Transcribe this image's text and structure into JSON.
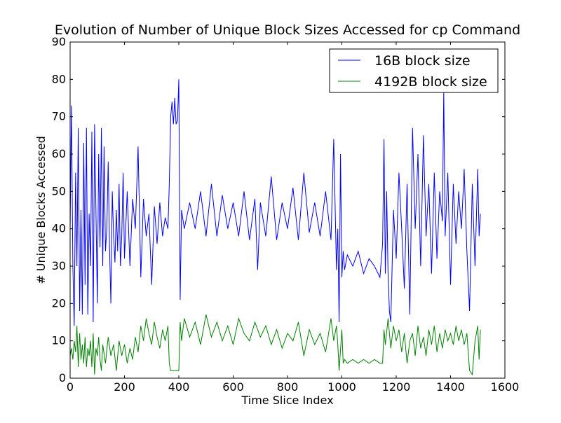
{
  "chart_data": {
    "type": "line",
    "title": "Evolution of Number of Unique Block Sizes Accessed for cp Command",
    "xlabel": "Time Slice Index",
    "ylabel": "# Unique Blocks Accessed",
    "xlim": [
      0,
      1600
    ],
    "ylim": [
      0,
      90
    ],
    "xticks": [
      0,
      200,
      400,
      600,
      800,
      1000,
      1200,
      1400,
      1600
    ],
    "yticks": [
      0,
      10,
      20,
      30,
      40,
      50,
      60,
      70,
      80,
      90
    ],
    "xtick_labels": [
      "0",
      "200",
      "400",
      "600",
      "800",
      "1000",
      "1200",
      "1400",
      "1600"
    ],
    "ytick_labels": [
      "0",
      "10",
      "20",
      "30",
      "40",
      "50",
      "60",
      "70",
      "80",
      "90"
    ],
    "grid": false,
    "legend_position": "top-right",
    "series": [
      {
        "name": "16B block size",
        "color": "#0000ff",
        "x": [
          0,
          5,
          10,
          15,
          20,
          25,
          30,
          35,
          40,
          45,
          50,
          55,
          60,
          65,
          70,
          75,
          80,
          85,
          90,
          95,
          100,
          105,
          110,
          115,
          120,
          125,
          130,
          135,
          140,
          145,
          150,
          155,
          160,
          165,
          170,
          175,
          180,
          185,
          190,
          195,
          200,
          210,
          220,
          230,
          240,
          250,
          260,
          270,
          280,
          290,
          300,
          310,
          320,
          330,
          340,
          350,
          360,
          365,
          370,
          375,
          380,
          385,
          390,
          395,
          400,
          405,
          410,
          420,
          440,
          460,
          480,
          500,
          520,
          540,
          560,
          580,
          600,
          620,
          640,
          660,
          680,
          690,
          700,
          720,
          740,
          760,
          780,
          800,
          820,
          840,
          860,
          880,
          900,
          920,
          940,
          960,
          970,
          980,
          985,
          990,
          995,
          1000,
          1005,
          1010,
          1020,
          1040,
          1060,
          1080,
          1100,
          1120,
          1140,
          1150,
          1155,
          1160,
          1165,
          1170,
          1175,
          1180,
          1190,
          1200,
          1210,
          1220,
          1230,
          1240,
          1250,
          1260,
          1270,
          1280,
          1290,
          1300,
          1310,
          1320,
          1330,
          1340,
          1350,
          1360,
          1370,
          1375,
          1380,
          1390,
          1400,
          1410,
          1420,
          1430,
          1440,
          1450,
          1460,
          1470,
          1480,
          1490,
          1500,
          1505,
          1510
        ],
        "values": [
          40,
          73,
          30,
          14,
          55,
          30,
          67,
          18,
          45,
          17,
          63,
          25,
          67,
          17,
          44,
          30,
          66,
          15,
          68,
          45,
          20,
          60,
          35,
          67,
          30,
          62,
          34,
          40,
          58,
          35,
          20,
          50,
          38,
          31,
          45,
          34,
          52,
          30,
          38,
          55,
          32,
          50,
          30,
          48,
          40,
          62,
          27,
          48,
          38,
          44,
          25,
          46,
          36,
          47,
          38,
          43,
          40,
          52,
          70,
          74,
          68,
          75,
          68,
          69,
          80,
          21,
          45,
          40,
          47,
          40,
          50,
          38,
          52,
          38,
          49,
          40,
          47,
          38,
          50,
          37,
          48,
          29,
          47,
          38,
          54,
          37,
          47,
          40,
          51,
          37,
          55,
          39,
          47,
          38,
          50,
          37,
          64,
          29,
          40,
          15,
          60,
          27,
          34,
          29,
          33,
          30,
          34,
          28,
          32,
          30,
          27,
          36,
          64,
          28,
          50,
          28,
          18,
          15,
          45,
          32,
          55,
          40,
          24,
          52,
          17,
          67,
          40,
          60,
          30,
          65,
          38,
          52,
          28,
          55,
          32,
          50,
          42,
          77,
          38,
          55,
          25,
          52,
          36,
          50,
          40,
          56,
          34,
          18,
          52,
          30,
          56,
          38,
          44
        ]
      },
      {
        "name": "4192B block size",
        "color": "#008000",
        "x": [
          0,
          5,
          10,
          15,
          20,
          25,
          30,
          35,
          40,
          45,
          50,
          55,
          60,
          65,
          70,
          75,
          80,
          85,
          90,
          95,
          100,
          105,
          110,
          115,
          120,
          130,
          140,
          150,
          160,
          170,
          180,
          190,
          200,
          210,
          220,
          230,
          240,
          250,
          260,
          270,
          280,
          290,
          300,
          310,
          320,
          330,
          340,
          350,
          360,
          365,
          370,
          380,
          390,
          400,
          405,
          410,
          420,
          440,
          460,
          480,
          500,
          520,
          540,
          560,
          580,
          600,
          620,
          640,
          660,
          680,
          700,
          720,
          740,
          760,
          780,
          800,
          820,
          840,
          860,
          880,
          900,
          920,
          940,
          960,
          970,
          980,
          985,
          990,
          1000,
          1005,
          1010,
          1020,
          1040,
          1060,
          1080,
          1100,
          1120,
          1140,
          1150,
          1155,
          1160,
          1170,
          1180,
          1190,
          1200,
          1210,
          1220,
          1230,
          1240,
          1250,
          1260,
          1270,
          1280,
          1290,
          1300,
          1310,
          1320,
          1330,
          1340,
          1350,
          1360,
          1370,
          1380,
          1390,
          1400,
          1410,
          1420,
          1430,
          1440,
          1450,
          1460,
          1470,
          1480,
          1490,
          1500,
          1505,
          1510
        ],
        "values": [
          6,
          8,
          5,
          10,
          7,
          14,
          3,
          12,
          5,
          9,
          4,
          11,
          3,
          8,
          6,
          10,
          3,
          12,
          1,
          8,
          6,
          11,
          5,
          2,
          9,
          4,
          11,
          6,
          9,
          2,
          10,
          6,
          9,
          4,
          8,
          5,
          11,
          7,
          14,
          10,
          16,
          12,
          9,
          15,
          11,
          8,
          13,
          10,
          14,
          4,
          2,
          2,
          2,
          2,
          15,
          10,
          16,
          11,
          15,
          9,
          17,
          11,
          15,
          10,
          14,
          9,
          16,
          12,
          10,
          15,
          11,
          14,
          9,
          13,
          8,
          12,
          10,
          15,
          6,
          13,
          9,
          12,
          7,
          16,
          10,
          14,
          9,
          2,
          13,
          4,
          5,
          4,
          5,
          4,
          5,
          4,
          5,
          4,
          4,
          13,
          9,
          16,
          8,
          14,
          10,
          13,
          7,
          12,
          4,
          10,
          12,
          6,
          14,
          8,
          11,
          6,
          13,
          9,
          14,
          7,
          12,
          8,
          13,
          10,
          12,
          9,
          14,
          10,
          13,
          9,
          12,
          2,
          1,
          10,
          14,
          5,
          13
        ]
      }
    ]
  }
}
